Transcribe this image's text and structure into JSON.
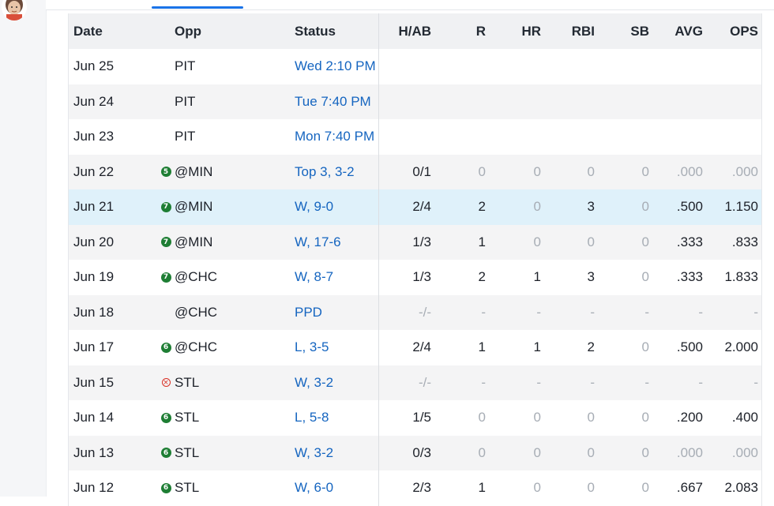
{
  "table": {
    "columns": {
      "date": "Date",
      "opp": "Opp",
      "status": "Status",
      "hab": "H/AB",
      "r": "R",
      "hr": "HR",
      "rbi": "RBI",
      "sb": "SB",
      "avg": "AVG",
      "ops": "OPS"
    },
    "rows": [
      {
        "date": "Jun 25",
        "badge": "",
        "opp": "PIT",
        "status": "Wed 2:10 PM",
        "hab": "",
        "r": "",
        "hr": "",
        "rbi": "",
        "sb": "",
        "avg": "",
        "ops": ""
      },
      {
        "date": "Jun 24",
        "badge": "",
        "opp": "PIT",
        "status": "Tue 7:40 PM",
        "hab": "",
        "r": "",
        "hr": "",
        "rbi": "",
        "sb": "",
        "avg": "",
        "ops": ""
      },
      {
        "date": "Jun 23",
        "badge": "",
        "opp": "PIT",
        "status": "Mon 7:40 PM",
        "hab": "",
        "r": "",
        "hr": "",
        "rbi": "",
        "sb": "",
        "avg": "",
        "ops": ""
      },
      {
        "date": "Jun 22",
        "badge": "5",
        "opp": "@MIN",
        "status": "Top 3, 3-2",
        "hab": "0/1",
        "r": "0",
        "hr": "0",
        "rbi": "0",
        "sb": "0",
        "avg": ".000",
        "ops": ".000"
      },
      {
        "date": "Jun 21",
        "badge": "7",
        "opp": "@MIN",
        "status": "W, 9-0",
        "hab": "2/4",
        "r": "2",
        "hr": "0",
        "rbi": "3",
        "sb": "0",
        "avg": ".500",
        "ops": "1.150"
      },
      {
        "date": "Jun 20",
        "badge": "7",
        "opp": "@MIN",
        "status": "W, 17-6",
        "hab": "1/3",
        "r": "1",
        "hr": "0",
        "rbi": "0",
        "sb": "0",
        "avg": ".333",
        "ops": ".833"
      },
      {
        "date": "Jun 19",
        "badge": "7",
        "opp": "@CHC",
        "status": "W, 8-7",
        "hab": "1/3",
        "r": "2",
        "hr": "1",
        "rbi": "3",
        "sb": "0",
        "avg": ".333",
        "ops": "1.833"
      },
      {
        "date": "Jun 18",
        "badge": "",
        "opp": "@CHC",
        "status": "PPD",
        "hab": "-/-",
        "r": "-",
        "hr": "-",
        "rbi": "-",
        "sb": "-",
        "avg": "-",
        "ops": "-"
      },
      {
        "date": "Jun 17",
        "badge": "6",
        "opp": "@CHC",
        "status": "L, 3-5",
        "hab": "2/4",
        "r": "1",
        "hr": "1",
        "rbi": "2",
        "sb": "0",
        "avg": ".500",
        "ops": "2.000"
      },
      {
        "date": "Jun 15",
        "badge": "⊗",
        "opp": "STL",
        "status": "W, 3-2",
        "hab": "-/-",
        "r": "-",
        "hr": "-",
        "rbi": "-",
        "sb": "-",
        "avg": "-",
        "ops": "-"
      },
      {
        "date": "Jun 14",
        "badge": "6",
        "opp": "STL",
        "status": "L, 5-8",
        "hab": "1/5",
        "r": "0",
        "hr": "0",
        "rbi": "0",
        "sb": "0",
        "avg": ".200",
        "ops": ".400"
      },
      {
        "date": "Jun 13",
        "badge": "6",
        "opp": "STL",
        "status": "W, 3-2",
        "hab": "0/3",
        "r": "0",
        "hr": "0",
        "rbi": "0",
        "sb": "0",
        "avg": ".000",
        "ops": ".000"
      },
      {
        "date": "Jun 12",
        "badge": "6",
        "opp": "STL",
        "status": "W, 6-0",
        "hab": "2/3",
        "r": "1",
        "hr": "0",
        "rbi": "0",
        "sb": "0",
        "avg": ".667",
        "ops": "2.083"
      }
    ]
  },
  "colors": {
    "link": "#1565c0",
    "badge_green": "#1e7e34",
    "badge_red": "#d93025",
    "highlight_row": "#dff1fa",
    "tab_indicator": "#1a73e8"
  }
}
